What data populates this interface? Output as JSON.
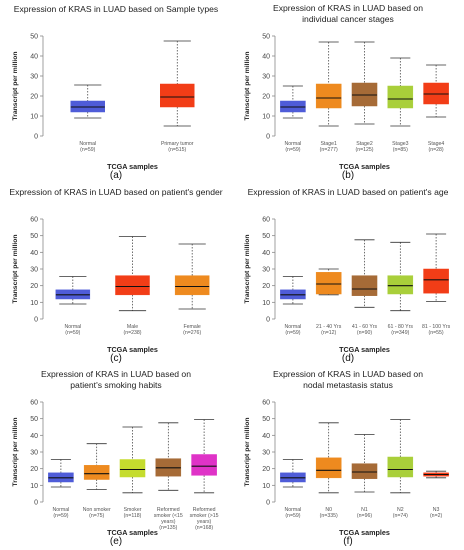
{
  "figure": {
    "panel_letters": [
      "(a)",
      "(b)",
      "(c)",
      "(d)",
      "(e)",
      "(f)"
    ]
  },
  "chart_data": [
    {
      "type": "box",
      "title": "Expression of KRAS in LUAD based on Sample types",
      "xlabel": "TCGA samples",
      "ylabel": "Transcript per million",
      "ylim": [
        0,
        50
      ],
      "yticks": [
        0,
        10,
        20,
        30,
        40,
        50
      ],
      "categories": [
        {
          "label": "Normal",
          "n": "(n=59)",
          "color": "#4F5CD8",
          "min": 9,
          "q1": 12,
          "median": 14.5,
          "q3": 17.5,
          "max": 25.5
        },
        {
          "label": "Primary tumor",
          "n": "(n=515)",
          "color": "#F23D17",
          "min": 5,
          "q1": 14.5,
          "median": 19.5,
          "q3": 26,
          "max": 47.5
        }
      ]
    },
    {
      "type": "box",
      "title": "Expression of KRAS in LUAD based on individual cancer stages",
      "xlabel": "TCGA samples",
      "ylabel": "Transcript per million",
      "ylim": [
        0,
        50
      ],
      "yticks": [
        0,
        10,
        20,
        30,
        40,
        50
      ],
      "categories": [
        {
          "label": "Normal",
          "n": "(n=59)",
          "color": "#4F5CD8",
          "min": 9,
          "q1": 12,
          "median": 14.5,
          "q3": 17.5,
          "max": 25
        },
        {
          "label": "Stage1",
          "n": "(n=277)",
          "color": "#EE8A1F",
          "min": 5,
          "q1": 14,
          "median": 19,
          "q3": 26,
          "max": 47
        },
        {
          "label": "Stage2",
          "n": "(n=125)",
          "color": "#A66B37",
          "min": 6,
          "q1": 15,
          "median": 20.5,
          "q3": 26.5,
          "max": 47
        },
        {
          "label": "Stage3",
          "n": "(n=85)",
          "color": "#A9CF3A",
          "min": 5,
          "q1": 14,
          "median": 18.5,
          "q3": 25,
          "max": 39
        },
        {
          "label": "Stage4",
          "n": "(n=28)",
          "color": "#F23D17",
          "min": 9.5,
          "q1": 16,
          "median": 21,
          "q3": 26.5,
          "max": 35.5
        }
      ]
    },
    {
      "type": "box",
      "title": "Expression of KRAS in LUAD based on patient's gender",
      "xlabel": "TCGA samples",
      "ylabel": "Transcript per million",
      "ylim": [
        0,
        60
      ],
      "yticks": [
        0,
        10,
        20,
        30,
        40,
        50,
        60
      ],
      "categories": [
        {
          "label": "Normal",
          "n": "(n=59)",
          "color": "#4F5CD8",
          "min": 9,
          "q1": 12,
          "median": 14.5,
          "q3": 17.5,
          "max": 25.5
        },
        {
          "label": "Male",
          "n": "(n=238)",
          "color": "#F23D17",
          "min": 5,
          "q1": 14.5,
          "median": 19.5,
          "q3": 26,
          "max": 49.5
        },
        {
          "label": "Female",
          "n": "(n=276)",
          "color": "#EE8A1F",
          "min": 6,
          "q1": 14.5,
          "median": 19.5,
          "q3": 26,
          "max": 45
        }
      ]
    },
    {
      "type": "box",
      "title": "Expression of KRAS in LUAD based on patient's age",
      "xlabel": "TCGA samples",
      "ylabel": "Transcript per million",
      "ylim": [
        0,
        60
      ],
      "yticks": [
        0,
        10,
        20,
        30,
        40,
        50,
        60
      ],
      "categories": [
        {
          "label": "Normal",
          "n": "(n=59)",
          "color": "#4F5CD8",
          "min": 9,
          "q1": 12,
          "median": 14.5,
          "q3": 17.5,
          "max": 25.5
        },
        {
          "label": "21 - 40 Yrs",
          "n": "(n=12)",
          "color": "#EE8A1F",
          "min": 14.5,
          "q1": 15,
          "median": 21,
          "q3": 28,
          "max": 30
        },
        {
          "label": "41 - 60 Yrs",
          "n": "(n=90)",
          "color": "#A66B37",
          "min": 7,
          "q1": 14,
          "median": 18,
          "q3": 26,
          "max": 47.5
        },
        {
          "label": "61 - 80 Yrs",
          "n": "(n=349)",
          "color": "#A9CF3A",
          "min": 5,
          "q1": 15,
          "median": 20,
          "q3": 26,
          "max": 46
        },
        {
          "label": "81 - 100 Yrs",
          "n": "(n=55)",
          "color": "#F23D17",
          "min": 10.5,
          "q1": 15.5,
          "median": 23.5,
          "q3": 30,
          "max": 51
        }
      ]
    },
    {
      "type": "box",
      "title": "Expression of KRAS in LUAD based on patient's smoking habits",
      "xlabel": "TCGA samples",
      "ylabel": "Transcript per million",
      "ylim": [
        0,
        60
      ],
      "yticks": [
        0,
        10,
        20,
        30,
        40,
        50,
        60
      ],
      "categories": [
        {
          "label": "Normal",
          "n": "(n=59)",
          "color": "#4F5CD8",
          "min": 9,
          "q1": 12,
          "median": 14.5,
          "q3": 17.5,
          "max": 25.5
        },
        {
          "label": "Non smoker",
          "n": "(n=75)",
          "color": "#EE8A1F",
          "min": 7.5,
          "q1": 13.5,
          "median": 17,
          "q3": 22,
          "max": 35
        },
        {
          "label": "Smoker",
          "n": "(n=118)",
          "color": "#C5DC2E",
          "min": 5.5,
          "q1": 15,
          "median": 19.5,
          "q3": 25.5,
          "max": 45
        },
        {
          "label": "Reformed smoker (<15 years)",
          "n": "(n=135)",
          "color": "#A66B37",
          "min": 7,
          "q1": 15.5,
          "median": 20.5,
          "q3": 26,
          "max": 47.5
        },
        {
          "label": "Reformed smoker (>15 years)",
          "n": "(n=168)",
          "color": "#DF33C7",
          "min": 5.5,
          "q1": 16,
          "median": 21.5,
          "q3": 28.5,
          "max": 49.5
        }
      ]
    },
    {
      "type": "box",
      "title": "Expression of KRAS in LUAD based on nodal metastasis status",
      "xlabel": "TCGA samples",
      "ylabel": "Transcript per million",
      "ylim": [
        0,
        60
      ],
      "yticks": [
        0,
        10,
        20,
        30,
        40,
        50,
        60
      ],
      "categories": [
        {
          "label": "Normal",
          "n": "(n=59)",
          "color": "#4F5CD8",
          "min": 9,
          "q1": 12,
          "median": 14.5,
          "q3": 17.5,
          "max": 25.5
        },
        {
          "label": "N0",
          "n": "(n=335)",
          "color": "#EE8A1F",
          "min": 5.5,
          "q1": 14.5,
          "median": 19,
          "q3": 26.5,
          "max": 47.5
        },
        {
          "label": "N1",
          "n": "(n=96)",
          "color": "#A66B37",
          "min": 6,
          "q1": 14,
          "median": 18,
          "q3": 23,
          "max": 40.5
        },
        {
          "label": "N2",
          "n": "(n=74)",
          "color": "#A9CF3A",
          "min": 5.5,
          "q1": 15,
          "median": 19.5,
          "q3": 27,
          "max": 49.5
        },
        {
          "label": "N3",
          "n": "(n=2)",
          "color": "#F23D17",
          "min": 14.5,
          "q1": 15.5,
          "median": 16.5,
          "q3": 17.5,
          "max": 18.5
        }
      ]
    }
  ]
}
